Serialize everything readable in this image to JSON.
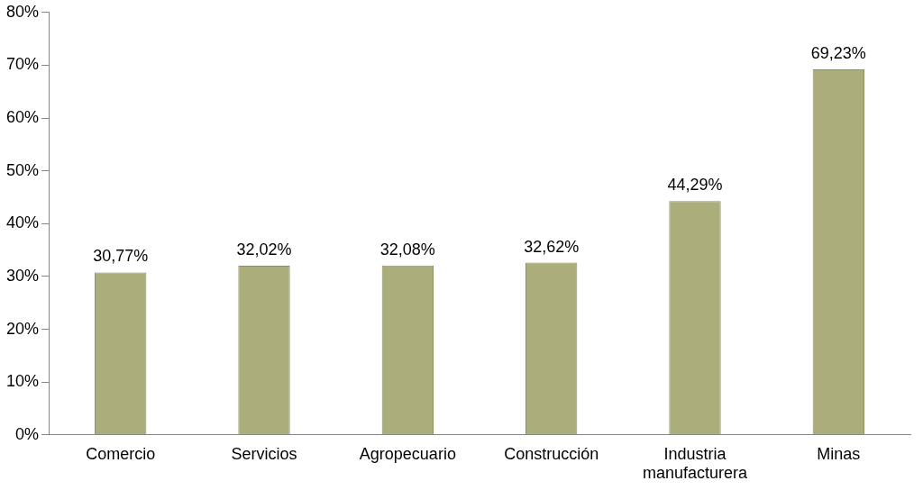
{
  "chart_data": {
    "type": "bar",
    "categories": [
      "Comercio",
      "Servicios",
      "Agropecuario",
      "Construcción",
      "Industria manufacturera",
      "Minas"
    ],
    "values": [
      30.77,
      32.02,
      32.08,
      32.62,
      44.29,
      69.23
    ],
    "value_labels": [
      "30,77%",
      "32,02%",
      "32,08%",
      "32,62%",
      "44,29%",
      "69,23%"
    ],
    "color": "#abae7b",
    "ylim": [
      0,
      80
    ],
    "yticks": [
      {
        "value": 0,
        "label": "0%"
      },
      {
        "value": 10,
        "label": "10%"
      },
      {
        "value": 20,
        "label": "20%"
      },
      {
        "value": 30,
        "label": "30%"
      },
      {
        "value": 40,
        "label": "40%"
      },
      {
        "value": 50,
        "label": "50%"
      },
      {
        "value": 60,
        "label": "60%"
      },
      {
        "value": 70,
        "label": "70%"
      },
      {
        "value": 80,
        "label": "80%"
      }
    ],
    "grid": false,
    "legend": false
  }
}
